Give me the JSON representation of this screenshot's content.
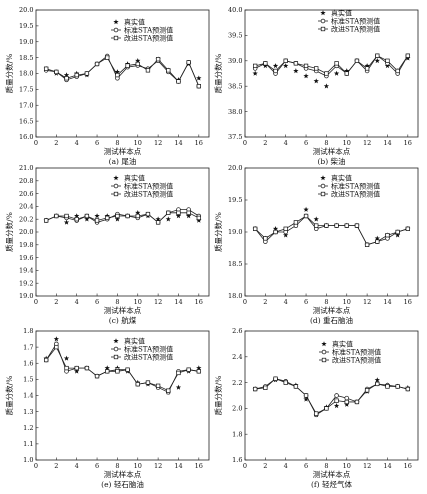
{
  "legend_labels": [
    "真实值",
    "标准STA预测值",
    "改进STA预测值"
  ],
  "chart_data": [
    {
      "type": "line",
      "caption": "(a) 尾油",
      "xlabel": "测试样本点",
      "ylabel": "质量分数/%",
      "xlim": [
        0,
        17
      ],
      "xticks": [
        0,
        2,
        4,
        6,
        8,
        10,
        12,
        14,
        16
      ],
      "ylim": [
        16.0,
        20.0
      ],
      "yticks": [
        16.0,
        16.5,
        17.0,
        17.5,
        18.0,
        18.5,
        19.0,
        19.5,
        20.0
      ],
      "x": [
        1,
        2,
        3,
        4,
        5,
        6,
        7,
        8,
        9,
        10,
        11,
        12,
        13,
        14,
        15,
        16
      ],
      "series": [
        {
          "name": "真实值",
          "values": [
            18.15,
            18.0,
            17.95,
            18.0,
            17.95,
            18.3,
            18.5,
            18.05,
            18.3,
            18.4,
            18.15,
            18.45,
            18.1,
            17.8,
            18.3,
            17.85
          ]
        },
        {
          "name": "标准STA预测值",
          "values": [
            18.1,
            18.05,
            17.8,
            17.9,
            18.0,
            18.3,
            18.55,
            17.85,
            18.2,
            18.25,
            18.15,
            18.4,
            18.05,
            17.75,
            18.35,
            17.6
          ]
        },
        {
          "name": "改进STA预测值",
          "values": [
            18.15,
            18.05,
            17.85,
            17.95,
            18.0,
            18.3,
            18.5,
            17.95,
            18.25,
            18.3,
            18.1,
            18.45,
            18.1,
            17.75,
            18.35,
            17.6
          ]
        }
      ]
    },
    {
      "type": "line",
      "caption": "(b) 柴油",
      "xlabel": "测试样本点",
      "ylabel": "质量分数/%",
      "xlim": [
        0,
        17
      ],
      "xticks": [
        0,
        2,
        4,
        6,
        8,
        10,
        12,
        14,
        16
      ],
      "ylim": [
        37.5,
        40.0
      ],
      "yticks": [
        37.5,
        38.0,
        38.5,
        39.0,
        39.5,
        40.0
      ],
      "x": [
        1,
        2,
        3,
        4,
        5,
        6,
        7,
        8,
        9,
        10,
        11,
        12,
        13,
        14,
        15,
        16
      ],
      "series": [
        {
          "name": "真实值",
          "values": [
            38.75,
            38.9,
            38.9,
            38.9,
            38.8,
            38.7,
            38.6,
            38.5,
            38.75,
            38.8,
            39.0,
            38.9,
            39.0,
            38.9,
            38.8,
            39.05
          ]
        },
        {
          "name": "标准STA预测值",
          "values": [
            38.85,
            38.95,
            38.75,
            39.0,
            38.95,
            38.85,
            38.8,
            38.7,
            38.9,
            38.75,
            39.0,
            38.8,
            39.1,
            38.95,
            38.75,
            39.1
          ]
        },
        {
          "name": "改进STA预测值",
          "values": [
            38.9,
            38.95,
            38.8,
            39.0,
            38.95,
            38.9,
            38.85,
            38.75,
            38.95,
            38.75,
            39.0,
            38.85,
            39.1,
            39.0,
            38.8,
            39.1
          ]
        }
      ]
    },
    {
      "type": "line",
      "caption": "(c) 航煤",
      "xlabel": "测试样本点",
      "ylabel": "质量分数/%",
      "xlim": [
        0,
        17
      ],
      "xticks": [
        0,
        2,
        4,
        6,
        8,
        10,
        12,
        14,
        16
      ],
      "ylim": [
        19.0,
        21.0
      ],
      "yticks": [
        19.0,
        19.2,
        19.4,
        19.6,
        19.8,
        20.0,
        20.2,
        20.4,
        20.6,
        20.8,
        21.0
      ],
      "x": [
        1,
        2,
        3,
        4,
        5,
        6,
        7,
        8,
        9,
        10,
        11,
        12,
        13,
        14,
        15,
        16
      ],
      "series": [
        {
          "name": "真实值",
          "values": [
            20.18,
            20.25,
            20.15,
            20.25,
            20.2,
            20.25,
            20.25,
            20.2,
            20.25,
            20.3,
            20.25,
            20.2,
            20.2,
            20.25,
            20.25,
            20.18
          ]
        },
        {
          "name": "标准STA预测值",
          "values": [
            20.18,
            20.25,
            20.22,
            20.18,
            20.25,
            20.15,
            20.2,
            20.28,
            20.25,
            20.22,
            20.28,
            20.15,
            20.3,
            20.35,
            20.35,
            20.25
          ]
        },
        {
          "name": "改进STA预测值",
          "values": [
            20.18,
            20.25,
            20.25,
            20.2,
            20.25,
            20.18,
            20.22,
            20.25,
            20.25,
            20.25,
            20.28,
            20.15,
            20.3,
            20.3,
            20.3,
            20.22
          ]
        }
      ]
    },
    {
      "type": "line",
      "caption": "(d) 重石脑油",
      "xlabel": "测试样本点",
      "ylabel": "质量分数/%",
      "xlim": [
        0,
        17
      ],
      "xticks": [
        0,
        2,
        4,
        6,
        8,
        10,
        12,
        14,
        16
      ],
      "ylim": [
        18.0,
        20.0
      ],
      "yticks": [
        18.0,
        18.5,
        19.0,
        19.5,
        20.0
      ],
      "x": [
        1,
        2,
        3,
        4,
        5,
        6,
        7,
        8,
        9,
        10,
        11,
        12,
        13,
        14,
        15,
        16
      ],
      "series": [
        {
          "name": "真实值",
          "values": [
            19.05,
            18.9,
            19.05,
            18.95,
            19.1,
            19.35,
            19.2,
            19.1,
            19.1,
            19.1,
            19.1,
            18.8,
            18.9,
            18.95,
            18.95,
            19.05
          ]
        },
        {
          "name": "标准STA预测值",
          "values": [
            19.05,
            18.85,
            19.0,
            19.0,
            19.1,
            19.25,
            19.05,
            19.1,
            19.1,
            19.1,
            19.1,
            18.8,
            18.85,
            18.9,
            19.0,
            19.05
          ]
        },
        {
          "name": "改进STA预测值",
          "values": [
            19.05,
            18.9,
            19.0,
            19.05,
            19.15,
            19.25,
            19.1,
            19.1,
            19.1,
            19.1,
            19.1,
            18.8,
            18.85,
            18.95,
            19.0,
            19.05
          ]
        }
      ]
    },
    {
      "type": "line",
      "caption": "(e) 轻石脑油",
      "xlabel": "测试样本点",
      "ylabel": "质量分数/%",
      "xlim": [
        0,
        17
      ],
      "xticks": [
        0,
        2,
        4,
        6,
        8,
        10,
        12,
        14,
        16
      ],
      "ylim": [
        1.0,
        1.8
      ],
      "yticks": [
        1.0,
        1.1,
        1.2,
        1.3,
        1.4,
        1.5,
        1.6,
        1.7,
        1.8
      ],
      "x": [
        1,
        2,
        3,
        4,
        5,
        6,
        7,
        8,
        9,
        10,
        11,
        12,
        13,
        14,
        15,
        16
      ],
      "series": [
        {
          "name": "真实值",
          "values": [
            1.63,
            1.75,
            1.63,
            1.55,
            1.57,
            1.52,
            1.57,
            1.57,
            1.55,
            1.48,
            1.47,
            1.45,
            1.42,
            1.45,
            1.55,
            1.57
          ]
        },
        {
          "name": "标准STA预测值",
          "values": [
            1.62,
            1.72,
            1.55,
            1.57,
            1.57,
            1.52,
            1.55,
            1.56,
            1.56,
            1.47,
            1.48,
            1.45,
            1.42,
            1.55,
            1.56,
            1.55
          ]
        },
        {
          "name": "改进STA预测值",
          "values": [
            1.62,
            1.7,
            1.57,
            1.57,
            1.57,
            1.52,
            1.55,
            1.55,
            1.56,
            1.47,
            1.48,
            1.46,
            1.43,
            1.54,
            1.56,
            1.55
          ]
        }
      ]
    },
    {
      "type": "line",
      "caption": "(f) 轻烃气体",
      "xlabel": "测试样本点",
      "ylabel": "质量分数/%",
      "xlim": [
        0,
        17
      ],
      "xticks": [
        0,
        2,
        4,
        6,
        8,
        10,
        12,
        14,
        16
      ],
      "ylim": [
        1.6,
        2.6
      ],
      "yticks": [
        1.6,
        1.8,
        2.0,
        2.2,
        2.4,
        2.6
      ],
      "x": [
        1,
        2,
        3,
        4,
        5,
        6,
        7,
        8,
        9,
        10,
        11,
        12,
        13,
        14,
        15,
        16
      ],
      "series": [
        {
          "name": "真实值",
          "values": [
            2.15,
            2.16,
            2.22,
            2.2,
            2.18,
            2.07,
            1.95,
            2.01,
            2.02,
            2.03,
            2.05,
            2.13,
            2.22,
            2.18,
            2.17,
            2.16
          ]
        },
        {
          "name": "标准STA预测值",
          "values": [
            2.15,
            2.17,
            2.23,
            2.21,
            2.17,
            2.1,
            1.95,
            2.0,
            2.1,
            2.08,
            2.05,
            2.15,
            2.19,
            2.18,
            2.17,
            2.15
          ]
        },
        {
          "name": "改进STA预测值",
          "values": [
            2.15,
            2.16,
            2.23,
            2.2,
            2.17,
            2.1,
            1.96,
            2.0,
            2.06,
            2.05,
            2.05,
            2.14,
            2.19,
            2.17,
            2.17,
            2.15
          ]
        }
      ]
    }
  ]
}
